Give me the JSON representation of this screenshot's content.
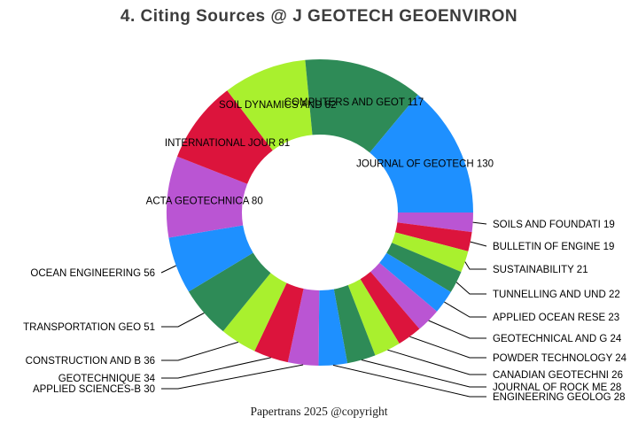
{
  "page": {
    "title": "4. Citing Sources @ J GEOTECH GEOENVIRON",
    "footer": "Papertrans 2025 @copyright"
  },
  "chart_data": {
    "type": "pie",
    "variant": "donut",
    "title": "4. Citing Sources @ J GEOTECH GEOENVIRON",
    "direction": "clockwise",
    "start_angle_deg": 0,
    "order": "ascending-by-value-clockwise-from-3-oclock",
    "inner_radius_ratio": 0.51,
    "total": 931,
    "legend": "none",
    "palette": [
      "#BA55D3",
      "#DC143C",
      "#A9F02E",
      "#2E8B57",
      "#1E90FF"
    ],
    "slices": [
      {
        "label": "SOILS AND FOUNDATI",
        "value": 19,
        "color": "#BA55D3"
      },
      {
        "label": "BULLETIN OF ENGINE",
        "value": 19,
        "color": "#DC143C"
      },
      {
        "label": "SUSTAINABILITY",
        "value": 21,
        "color": "#A9F02E"
      },
      {
        "label": "TUNNELLING AND UND",
        "value": 22,
        "color": "#2E8B57"
      },
      {
        "label": "APPLIED OCEAN RESE",
        "value": 23,
        "color": "#1E90FF"
      },
      {
        "label": "GEOTECHNICAL AND G",
        "value": 24,
        "color": "#BA55D3"
      },
      {
        "label": "POWDER TECHNOLOGY",
        "value": 24,
        "color": "#DC143C"
      },
      {
        "label": "CANADIAN GEOTECHNI",
        "value": 26,
        "color": "#A9F02E"
      },
      {
        "label": "JOURNAL OF ROCK ME",
        "value": 28,
        "color": "#2E8B57"
      },
      {
        "label": "ENGINEERING GEOLOG",
        "value": 28,
        "color": "#1E90FF"
      },
      {
        "label": "APPLIED SCIENCES-B",
        "value": 30,
        "color": "#BA55D3"
      },
      {
        "label": "GEOTECHNIQUE",
        "value": 34,
        "color": "#DC143C"
      },
      {
        "label": "CONSTRUCTION AND B",
        "value": 36,
        "color": "#A9F02E"
      },
      {
        "label": "TRANSPORTATION GEO",
        "value": 51,
        "color": "#2E8B57"
      },
      {
        "label": "OCEAN ENGINEERING",
        "value": 56,
        "color": "#1E90FF"
      },
      {
        "label": "ACTA GEOTECHNICA",
        "value": 80,
        "color": "#BA55D3"
      },
      {
        "label": "INTERNATIONAL JOUR",
        "value": 81,
        "color": "#DC143C"
      },
      {
        "label": "SOIL DYNAMICS AND",
        "value": 82,
        "color": "#A9F02E"
      },
      {
        "label": "COMPUTERS AND GEOT",
        "value": 117,
        "color": "#2E8B57"
      },
      {
        "label": "JOURNAL OF GEOTECH",
        "value": 130,
        "color": "#1E90FF"
      }
    ]
  }
}
